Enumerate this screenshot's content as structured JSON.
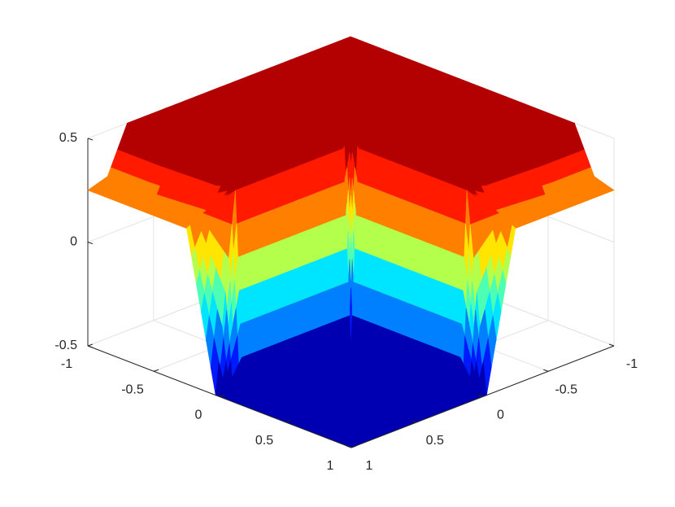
{
  "chart_data": {
    "type": "surface",
    "x": [
      -1,
      -0.85,
      -0.7,
      -0.25,
      -0.03,
      0.03,
      0.25,
      0.7,
      0.85,
      1
    ],
    "y": [
      -1,
      -0.85,
      -0.7,
      -0.25,
      -0.03,
      0.03,
      0.25,
      0.7,
      0.85,
      1
    ],
    "z": [
      [
        0.5,
        0.5,
        0.5,
        0.5,
        0.5,
        0.5,
        0.5,
        0.5,
        0.28,
        0.25
      ],
      [
        0.5,
        0.5,
        0.5,
        0.5,
        0.5,
        0.5,
        0.5,
        0.5,
        0.28,
        0.25
      ],
      [
        0.5,
        0.5,
        0.5,
        0.5,
        0.5,
        0.5,
        0.5,
        0.5,
        0.28,
        0.25
      ],
      [
        0.5,
        0.5,
        0.5,
        0.5,
        0.5,
        0.5,
        0.5,
        0.5,
        0.3,
        0.25
      ],
      [
        0.5,
        0.5,
        0.5,
        0.5,
        0.5,
        0.45,
        0.45,
        0.45,
        0.45,
        -0.5
      ],
      [
        0.5,
        0.5,
        0.5,
        0.5,
        0.45,
        -0.5,
        -0.5,
        -0.5,
        -0.5,
        -0.5
      ],
      [
        0.5,
        0.5,
        0.5,
        0.5,
        0.45,
        -0.5,
        -0.5,
        -0.5,
        -0.5,
        -0.5
      ],
      [
        0.5,
        0.5,
        0.5,
        0.5,
        0.45,
        -0.5,
        -0.5,
        -0.5,
        -0.5,
        -0.5
      ],
      [
        0.28,
        0.28,
        0.28,
        0.3,
        0.45,
        -0.5,
        -0.5,
        -0.5,
        -0.5,
        -0.5
      ],
      [
        0.25,
        0.25,
        0.25,
        0.25,
        -0.5,
        -0.5,
        -0.5,
        -0.5,
        -0.5,
        -0.5
      ]
    ],
    "xlim": [
      -1,
      1
    ],
    "ylim": [
      -1,
      1
    ],
    "zlim": [
      -0.5,
      0.5
    ],
    "xticks": [
      -1,
      -0.5,
      0,
      0.5,
      1
    ],
    "yticks": [
      -1,
      -0.5,
      0,
      0.5,
      1
    ],
    "zticks": [
      -0.5,
      0,
      0.5
    ],
    "grid": true,
    "colormap": "jet",
    "levels": 10
  }
}
